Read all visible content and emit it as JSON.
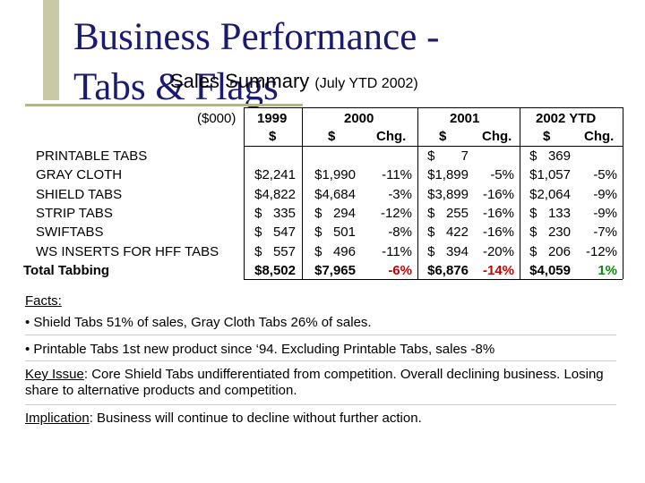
{
  "title": {
    "line1": "Business Performance -",
    "line2": "Tabs & Flags",
    "subtitle_main": "Sales Summary",
    "subtitle_period": "(July YTD 2002)"
  },
  "table": {
    "unit_label": "($000)",
    "col_headers": [
      {
        "year": "1999",
        "sub1": "$",
        "sub2": ""
      },
      {
        "year": "2000",
        "sub1": "$",
        "sub2": "Chg."
      },
      {
        "year": "2001",
        "sub1": "$",
        "sub2": "Chg."
      },
      {
        "year": "2002 YTD",
        "sub1": "$",
        "sub2": "Chg."
      }
    ],
    "rows": [
      {
        "label": "PRINTABLE TABS",
        "v1999": "",
        "v2000": "",
        "c2000": "",
        "v2001": "$       7",
        "c2001": "",
        "v2002": "$   369",
        "c2002": ""
      },
      {
        "label": "GRAY CLOTH",
        "v1999": "$2,241",
        "v2000": "$1,990",
        "c2000": "-11%",
        "v2001": "$1,899",
        "c2001": "-5%",
        "v2002": "$1,057",
        "c2002": "-5%"
      },
      {
        "label": "SHIELD TABS",
        "v1999": "$4,822",
        "v2000": "$4,684",
        "c2000": "-3%",
        "v2001": "$3,899",
        "c2001": "-16%",
        "v2002": "$2,064",
        "c2002": "-9%"
      },
      {
        "label": "STRIP TABS",
        "v1999": "$   335",
        "v2000": "$   294",
        "c2000": "-12%",
        "v2001": "$   255",
        "c2001": "-16%",
        "v2002": "$   133",
        "c2002": "-9%"
      },
      {
        "label": "SWIFTABS",
        "v1999": "$   547",
        "v2000": "$   501",
        "c2000": "-8%",
        "v2001": "$   422",
        "c2001": "-16%",
        "v2002": "$   230",
        "c2002": "-7%"
      },
      {
        "label": "WS INSERTS FOR HFF TABS",
        "v1999": "$   557",
        "v2000": "$   496",
        "c2000": "-11%",
        "v2001": "$   394",
        "c2001": "-20%",
        "v2002": "$   206",
        "c2002": "-12%"
      }
    ],
    "total": {
      "label": "Total Tabbing",
      "v1999": "$8,502",
      "v2000": "$7,965",
      "c2000": "-6%",
      "v2001": "$6,876",
      "c2001": "-14%",
      "v2002": "$4,059",
      "c2002": "1%"
    },
    "colors": {
      "negative": "#cc0000",
      "positive": "#0a8a0a"
    }
  },
  "facts": {
    "heading": "Facts:",
    "bullet1": "• Shield Tabs 51% of sales, Gray Cloth Tabs 26% of sales.",
    "bullet2": "• Printable Tabs 1st new product since ‘94. Excluding Printable Tabs, sales -8%",
    "key_issue_label": "Key Issue",
    "key_issue_text": ": Core Shield Tabs undifferentiated from competition. Overall declining business. Losing share to alternative products and competition.",
    "implication_label": "Implication",
    "implication_text": ": Business will continue to decline without further action."
  }
}
